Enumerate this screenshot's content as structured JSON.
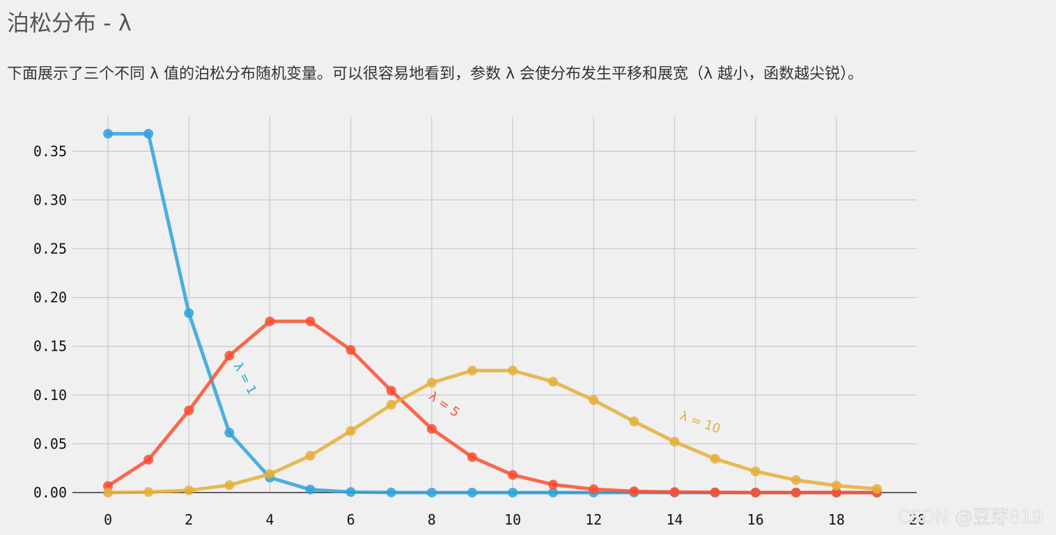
{
  "page": {
    "title": "泊松分布 - λ",
    "description": "下面展示了三个不同 λ 值的泊松分布随机变量。可以很容易地看到，参数 λ 会使分布发生平移和展宽（λ 越小，函数越尖锐）。"
  },
  "chart_data": {
    "type": "line",
    "x": [
      0,
      1,
      2,
      3,
      4,
      5,
      6,
      7,
      8,
      9,
      10,
      11,
      12,
      13,
      14,
      15,
      16,
      17,
      18,
      19
    ],
    "xlim": [
      -0.8,
      20.2
    ],
    "ylim": [
      -0.004,
      0.39
    ],
    "xticks": [
      "0",
      "2",
      "4",
      "6",
      "8",
      "10",
      "12",
      "14",
      "16",
      "18",
      "20"
    ],
    "yticks": [
      "0.00",
      "0.05",
      "0.10",
      "0.15",
      "0.20",
      "0.25",
      "0.30",
      "0.35"
    ],
    "grid": true,
    "series": [
      {
        "name": "λ = 1",
        "color": "#30a2da",
        "values": [
          0.3679,
          0.3679,
          0.1839,
          0.0613,
          0.0153,
          0.0031,
          0.0005,
          0.0001,
          0.0,
          0.0,
          0.0,
          0.0,
          0.0,
          0.0,
          0.0,
          0.0,
          0.0,
          0.0,
          0.0,
          0.0
        ],
        "label_at": [
          3.3,
          0.115
        ],
        "label_rotation": 62
      },
      {
        "name": "λ = 5",
        "color": "#fc4f30",
        "values": [
          0.0067,
          0.0337,
          0.0842,
          0.1404,
          0.1755,
          0.1755,
          0.1462,
          0.1044,
          0.0653,
          0.0363,
          0.0181,
          0.0082,
          0.0034,
          0.0013,
          0.0005,
          0.0002,
          0.0,
          0.0,
          0.0,
          0.0
        ],
        "label_at": [
          8.25,
          0.087
        ],
        "label_rotation": 35
      },
      {
        "name": "λ = 10",
        "color": "#e5ae38",
        "values": [
          0.0,
          0.0005,
          0.0023,
          0.0076,
          0.0189,
          0.0378,
          0.0631,
          0.0901,
          0.1126,
          0.1251,
          0.1251,
          0.1137,
          0.0948,
          0.0729,
          0.0521,
          0.0347,
          0.0217,
          0.0128,
          0.0071,
          0.0037
        ],
        "label_at": [
          14.6,
          0.068
        ],
        "label_rotation": 20
      }
    ]
  },
  "watermark": "CSDN @豆芽819"
}
